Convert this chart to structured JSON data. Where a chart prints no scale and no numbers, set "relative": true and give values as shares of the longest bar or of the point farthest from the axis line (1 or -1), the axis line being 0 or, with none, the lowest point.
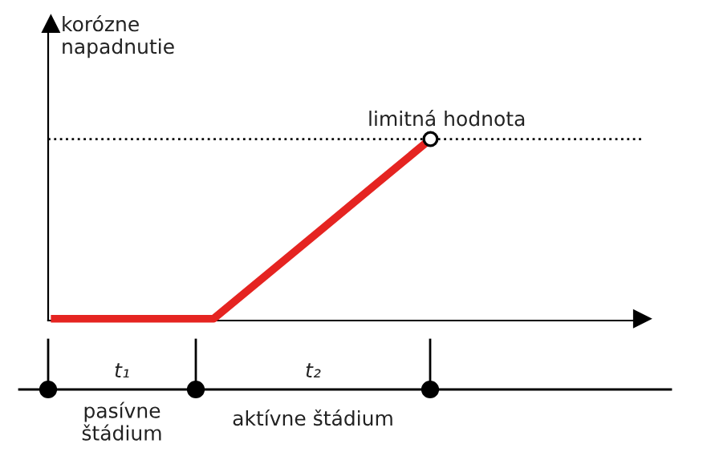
{
  "chart_data": {
    "type": "line",
    "relative": true,
    "ylabel": "korózne napadnutie",
    "categories": [
      null,
      null,
      null,
      null,
      null,
      null,
      null,
      null
    ],
    "series": [
      {
        "color": "#e52421",
        "values": [
          0,
          0,
          0,
          0,
          0.25,
          0.5,
          0.75,
          1
        ]
      }
    ],
    "ref_lines": [
      {
        "axis": "y",
        "value": 1,
        "label": "limitná hodnota",
        "color": "#000000",
        "line_style": "dotted"
      }
    ],
    "annotations": [
      "t₁",
      "t₂",
      "pasívne štádium",
      "aktívne štádium"
    ],
    "line_style": "solid"
  }
}
